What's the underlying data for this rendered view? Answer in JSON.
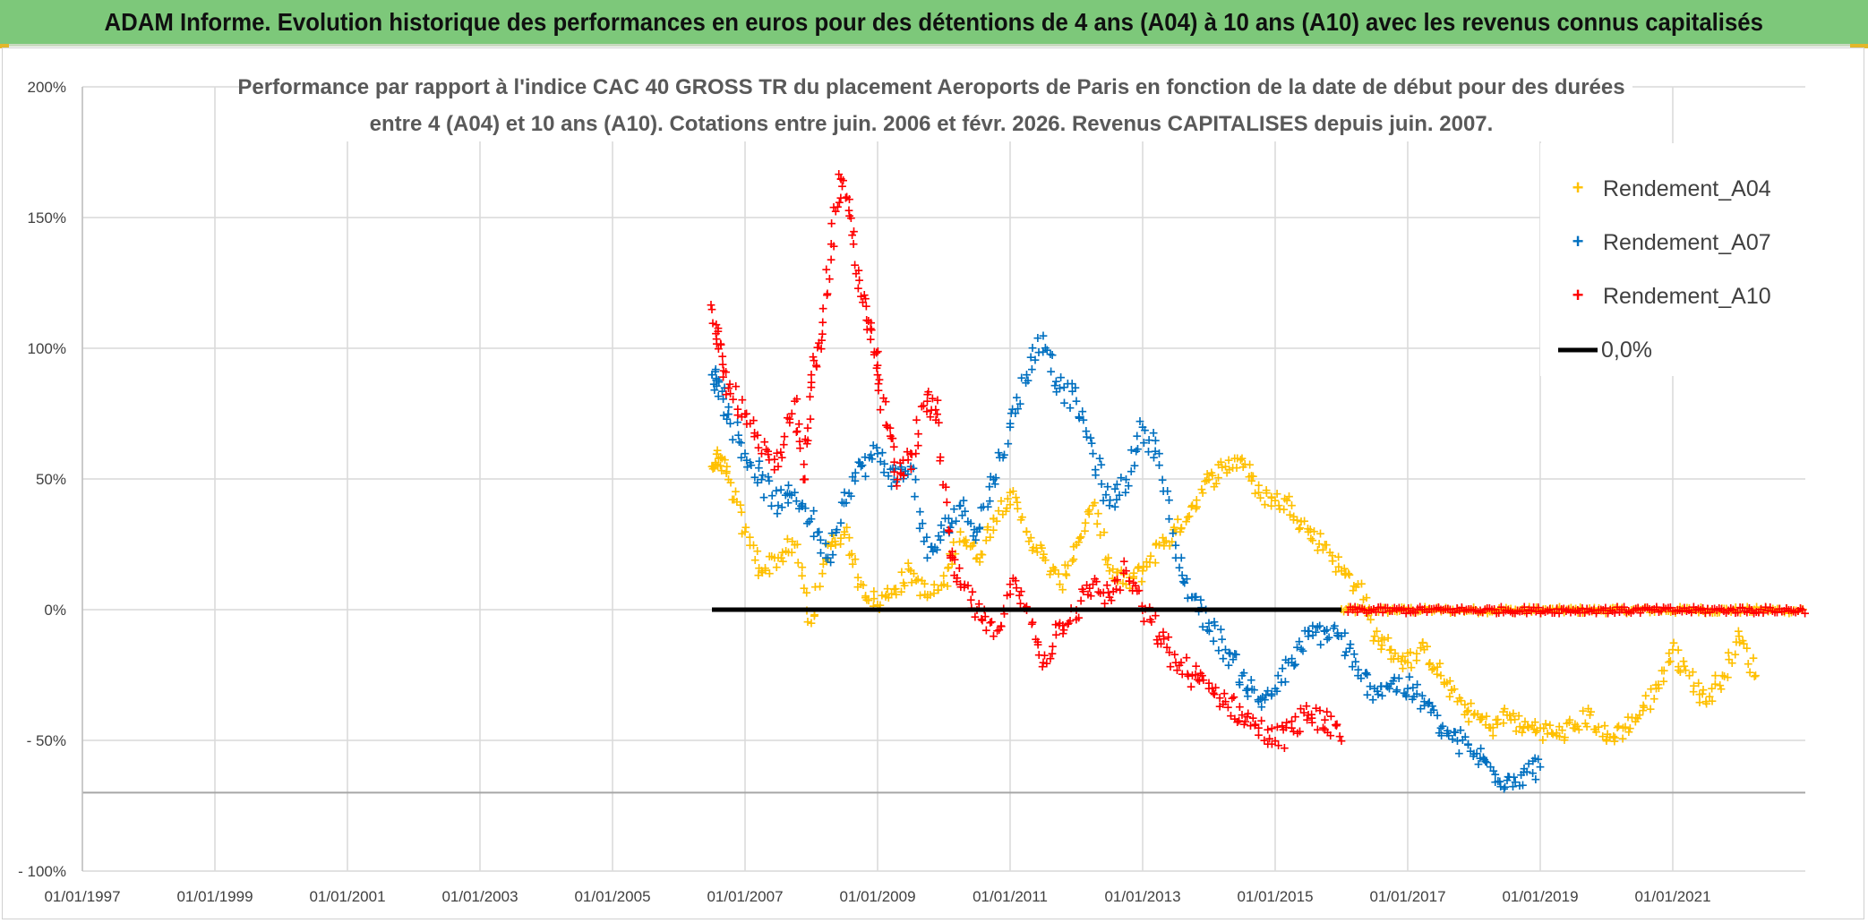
{
  "banner_title": "ADAM Informe. Evolution historique des performances en euros pour des détentions de 4 ans (A04) à 10 ans (A10) avec les revenus connus capitalisés",
  "colors": {
    "banner": "#7dc87a",
    "A04": "#ffc000",
    "A07": "#0070c0",
    "A10": "#ff0000",
    "zero": "#000000",
    "grid": "#d9d9d9"
  },
  "chart_data": {
    "type": "scatter",
    "title_line1": "Performance par rapport à l'indice CAC 40 GROSS TR  du placement Aeroports de Paris en fonction de la date de début pour des durées",
    "title_line2": "entre 4 (A04) et 10 ans (A10). Cotations entre juin. 2006 et févr. 2026. Revenus CAPITALISES depuis juin. 2007.",
    "xlabel": "",
    "ylabel": "",
    "xlim": [
      1997.0,
      2023.0
    ],
    "ylim": [
      -100,
      200
    ],
    "y_ticks": [
      200,
      150,
      100,
      50,
      0,
      -50,
      -100
    ],
    "y_tick_labels": [
      "200%",
      "150%",
      "100%",
      "50%",
      "0%",
      "- 50%",
      "- 100%"
    ],
    "x_ticks": [
      1997,
      1999,
      2001,
      2003,
      2005,
      2007,
      2009,
      2011,
      2013,
      2015,
      2017,
      2019,
      2021
    ],
    "x_tick_labels": [
      "01/01/1997",
      "01/01/1999",
      "01/01/2001",
      "01/01/2003",
      "01/01/2005",
      "01/01/2007",
      "01/01/2009",
      "01/01/2011",
      "01/01/2013",
      "01/01/2015",
      "01/01/2017",
      "01/01/2019",
      "01/01/2021"
    ],
    "grid": true,
    "legend_position": "top-right",
    "series": [
      {
        "name": "Rendement_A04",
        "color": "#ffc000",
        "marker": "+",
        "x": [
          2006.5,
          2006.6,
          2006.75,
          2007.0,
          2007.25,
          2007.5,
          2007.75,
          2008.0,
          2008.25,
          2008.5,
          2008.75,
          2009.0,
          2009.25,
          2009.5,
          2009.75,
          2010.0,
          2010.25,
          2010.5,
          2010.75,
          2011.0,
          2011.25,
          2011.5,
          2011.75,
          2012.0,
          2012.25,
          2012.5,
          2012.75,
          2013.0,
          2013.25,
          2013.5,
          2013.75,
          2014.0,
          2014.25,
          2014.5,
          2014.75,
          2015.0,
          2015.25,
          2015.5,
          2015.75,
          2016.0,
          2016.25,
          2016.5,
          2016.75,
          2017.0,
          2017.25,
          2017.5,
          2017.75,
          2018.0,
          2018.25,
          2018.5,
          2018.75,
          2019.0,
          2019.25,
          2019.5,
          2019.75,
          2020.0,
          2020.25,
          2020.5,
          2020.75,
          2021.0,
          2021.25,
          2021.5,
          2021.75,
          2022.0,
          2022.25
        ],
        "y": [
          55,
          58,
          50,
          30,
          15,
          20,
          25,
          -5,
          25,
          30,
          10,
          2,
          8,
          15,
          5,
          10,
          30,
          20,
          35,
          45,
          30,
          20,
          10,
          25,
          40,
          15,
          10,
          15,
          25,
          30,
          40,
          50,
          55,
          58,
          45,
          42,
          40,
          30,
          25,
          15,
          10,
          -10,
          -15,
          -20,
          -15,
          -25,
          -35,
          -40,
          -45,
          -40,
          -45,
          -45,
          -48,
          -45,
          -40,
          -50,
          -45,
          -40,
          -30,
          -15,
          -25,
          -35,
          -25,
          -10,
          -25
        ],
        "dup_spread_x": 0.06,
        "dup_spread_y": 4
      },
      {
        "name": "Rendement_A07",
        "color": "#0070c0",
        "marker": "+",
        "x": [
          2006.5,
          2006.6,
          2006.75,
          2007.0,
          2007.25,
          2007.5,
          2007.75,
          2008.0,
          2008.25,
          2008.5,
          2008.75,
          2009.0,
          2009.25,
          2009.5,
          2009.75,
          2010.0,
          2010.25,
          2010.5,
          2010.75,
          2011.0,
          2011.25,
          2011.5,
          2011.75,
          2012.0,
          2012.25,
          2012.5,
          2012.75,
          2013.0,
          2013.25,
          2013.5,
          2013.75,
          2014.0,
          2014.25,
          2014.5,
          2014.75,
          2015.0,
          2015.25,
          2015.5,
          2015.75,
          2016.0,
          2016.25,
          2016.5,
          2016.75,
          2017.0,
          2017.25,
          2017.5,
          2017.75,
          2018.0,
          2018.25,
          2018.5,
          2018.75,
          2019.0
        ],
        "y": [
          90,
          88,
          75,
          60,
          50,
          40,
          45,
          35,
          20,
          45,
          55,
          60,
          50,
          55,
          20,
          30,
          40,
          30,
          50,
          70,
          90,
          105,
          85,
          80,
          60,
          40,
          50,
          70,
          60,
          20,
          5,
          -5,
          -15,
          -25,
          -35,
          -30,
          -20,
          -10,
          -8,
          -10,
          -25,
          -30,
          -28,
          -30,
          -35,
          -45,
          -50,
          -55,
          -60,
          -65,
          -62,
          -60
        ],
        "dup_spread_x": 0.06,
        "dup_spread_y": 5
      },
      {
        "name": "Rendement_A10",
        "color": "#ff0000",
        "marker": "+",
        "x": [
          2006.5,
          2006.6,
          2006.75,
          2007.0,
          2007.25,
          2007.5,
          2007.75,
          2007.9,
          2008.0,
          2008.15,
          2008.3,
          2008.45,
          2008.6,
          2008.75,
          2008.9,
          2009.0,
          2009.15,
          2009.3,
          2009.5,
          2009.75,
          2009.9,
          2010.1,
          2010.25,
          2010.5,
          2010.75,
          2011.0,
          2011.25,
          2011.5,
          2011.75,
          2012.0,
          2012.25,
          2012.5,
          2012.75,
          2013.0,
          2013.25,
          2013.5,
          2013.75,
          2014.0,
          2014.25,
          2014.5,
          2014.75,
          2015.0,
          2015.25,
          2015.5,
          2015.75,
          2016.0
        ],
        "y": [
          115,
          100,
          85,
          75,
          60,
          55,
          80,
          50,
          90,
          100,
          140,
          165,
          150,
          120,
          110,
          90,
          70,
          50,
          60,
          80,
          75,
          20,
          10,
          0,
          -10,
          10,
          0,
          -20,
          -5,
          0,
          10,
          5,
          15,
          0,
          -10,
          -20,
          -25,
          -30,
          -35,
          -40,
          -45,
          -50,
          -45,
          -40,
          -42,
          -50
        ],
        "dup_spread_x": 0.06,
        "dup_spread_y": 5
      }
    ],
    "zero_line": {
      "name": "0,0%",
      "color": "#000000",
      "x": [
        2006.5,
        2023.0
      ],
      "y": [
        0,
        0
      ]
    },
    "zero_markers_a04_x_range": [
      2016.0,
      2023.0
    ],
    "zero_markers_a10_x_range": [
      2016.1,
      2023.0
    ],
    "extra_line_y": -70
  }
}
